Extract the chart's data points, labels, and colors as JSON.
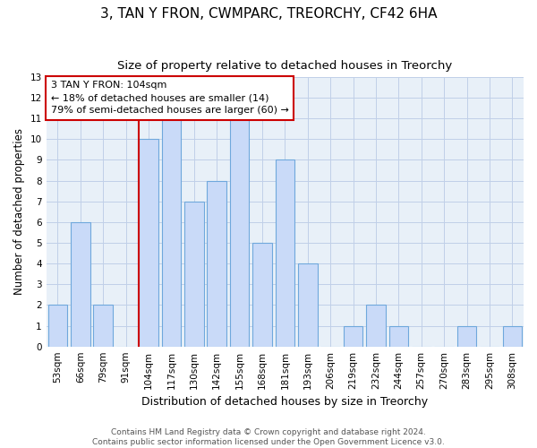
{
  "title": "3, TAN Y FRON, CWMPARC, TREORCHY, CF42 6HA",
  "subtitle": "Size of property relative to detached houses in Treorchy",
  "xlabel": "Distribution of detached houses by size in Treorchy",
  "ylabel": "Number of detached properties",
  "categories": [
    "53sqm",
    "66sqm",
    "79sqm",
    "91sqm",
    "104sqm",
    "117sqm",
    "130sqm",
    "142sqm",
    "155sqm",
    "168sqm",
    "181sqm",
    "193sqm",
    "206sqm",
    "219sqm",
    "232sqm",
    "244sqm",
    "257sqm",
    "270sqm",
    "283sqm",
    "295sqm",
    "308sqm"
  ],
  "values": [
    2,
    6,
    2,
    0,
    10,
    11,
    7,
    8,
    11,
    5,
    9,
    4,
    0,
    1,
    2,
    1,
    0,
    0,
    1,
    0,
    1
  ],
  "bar_color": "#c9daf8",
  "bar_edge_color": "#6fa8dc",
  "highlight_index": 4,
  "highlight_line_color": "#cc0000",
  "annotation_text": "3 TAN Y FRON: 104sqm\n← 18% of detached houses are smaller (14)\n79% of semi-detached houses are larger (60) →",
  "annotation_box_color": "#ffffff",
  "annotation_box_edge_color": "#cc0000",
  "ylim": [
    0,
    13
  ],
  "yticks": [
    0,
    1,
    2,
    3,
    4,
    5,
    6,
    7,
    8,
    9,
    10,
    11,
    12,
    13
  ],
  "footer": "Contains HM Land Registry data © Crown copyright and database right 2024.\nContains public sector information licensed under the Open Government Licence v3.0.",
  "grid_color": "#c0cfe8",
  "background_color": "#ffffff",
  "title_fontsize": 11,
  "subtitle_fontsize": 9.5,
  "tick_fontsize": 7.5,
  "annotation_fontsize": 8,
  "ylabel_fontsize": 8.5,
  "xlabel_fontsize": 9
}
